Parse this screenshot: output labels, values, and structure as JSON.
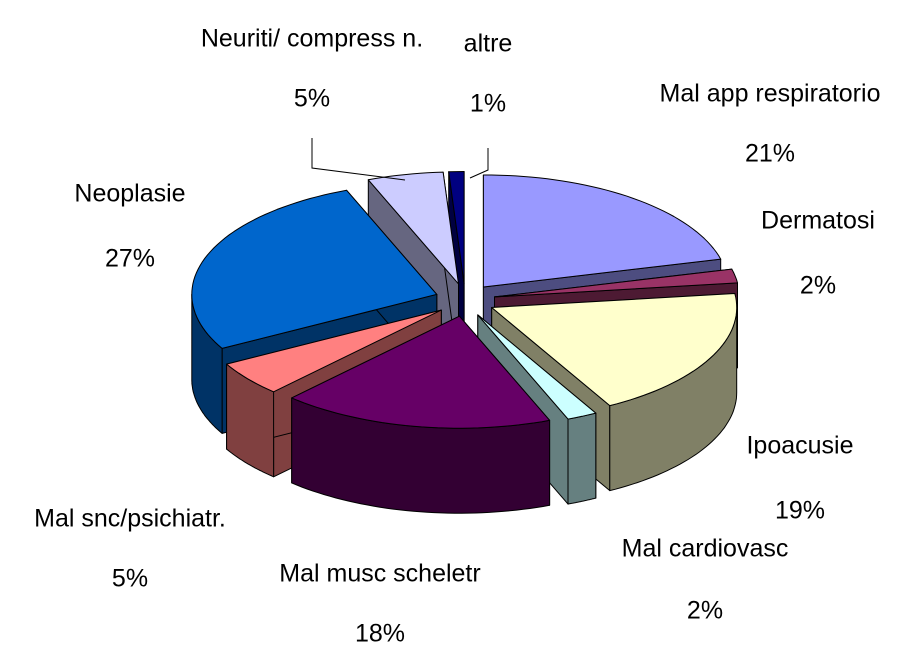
{
  "chart_data": {
    "type": "pie3d",
    "categories": [
      "Mal app respiratorio",
      "Dermatosi",
      "Ipoacusie",
      "Mal cardiovasc",
      "Mal musc scheletr",
      "Mal snc/psichiatr.",
      "Neoplasie",
      "Neuriti/ compress n.",
      "altre"
    ],
    "values": [
      21,
      2,
      19,
      2,
      18,
      5,
      27,
      5,
      1
    ],
    "value_labels": [
      "21%",
      "2%",
      "19%",
      "2%",
      "18%",
      "5%",
      "27%",
      "5%",
      "1%"
    ],
    "colors": [
      "#9999ff",
      "#993366",
      "#ffffcc",
      "#ccffff",
      "#660066",
      "#ff8080",
      "#0066cc",
      "#ccccff",
      "#000080"
    ]
  }
}
